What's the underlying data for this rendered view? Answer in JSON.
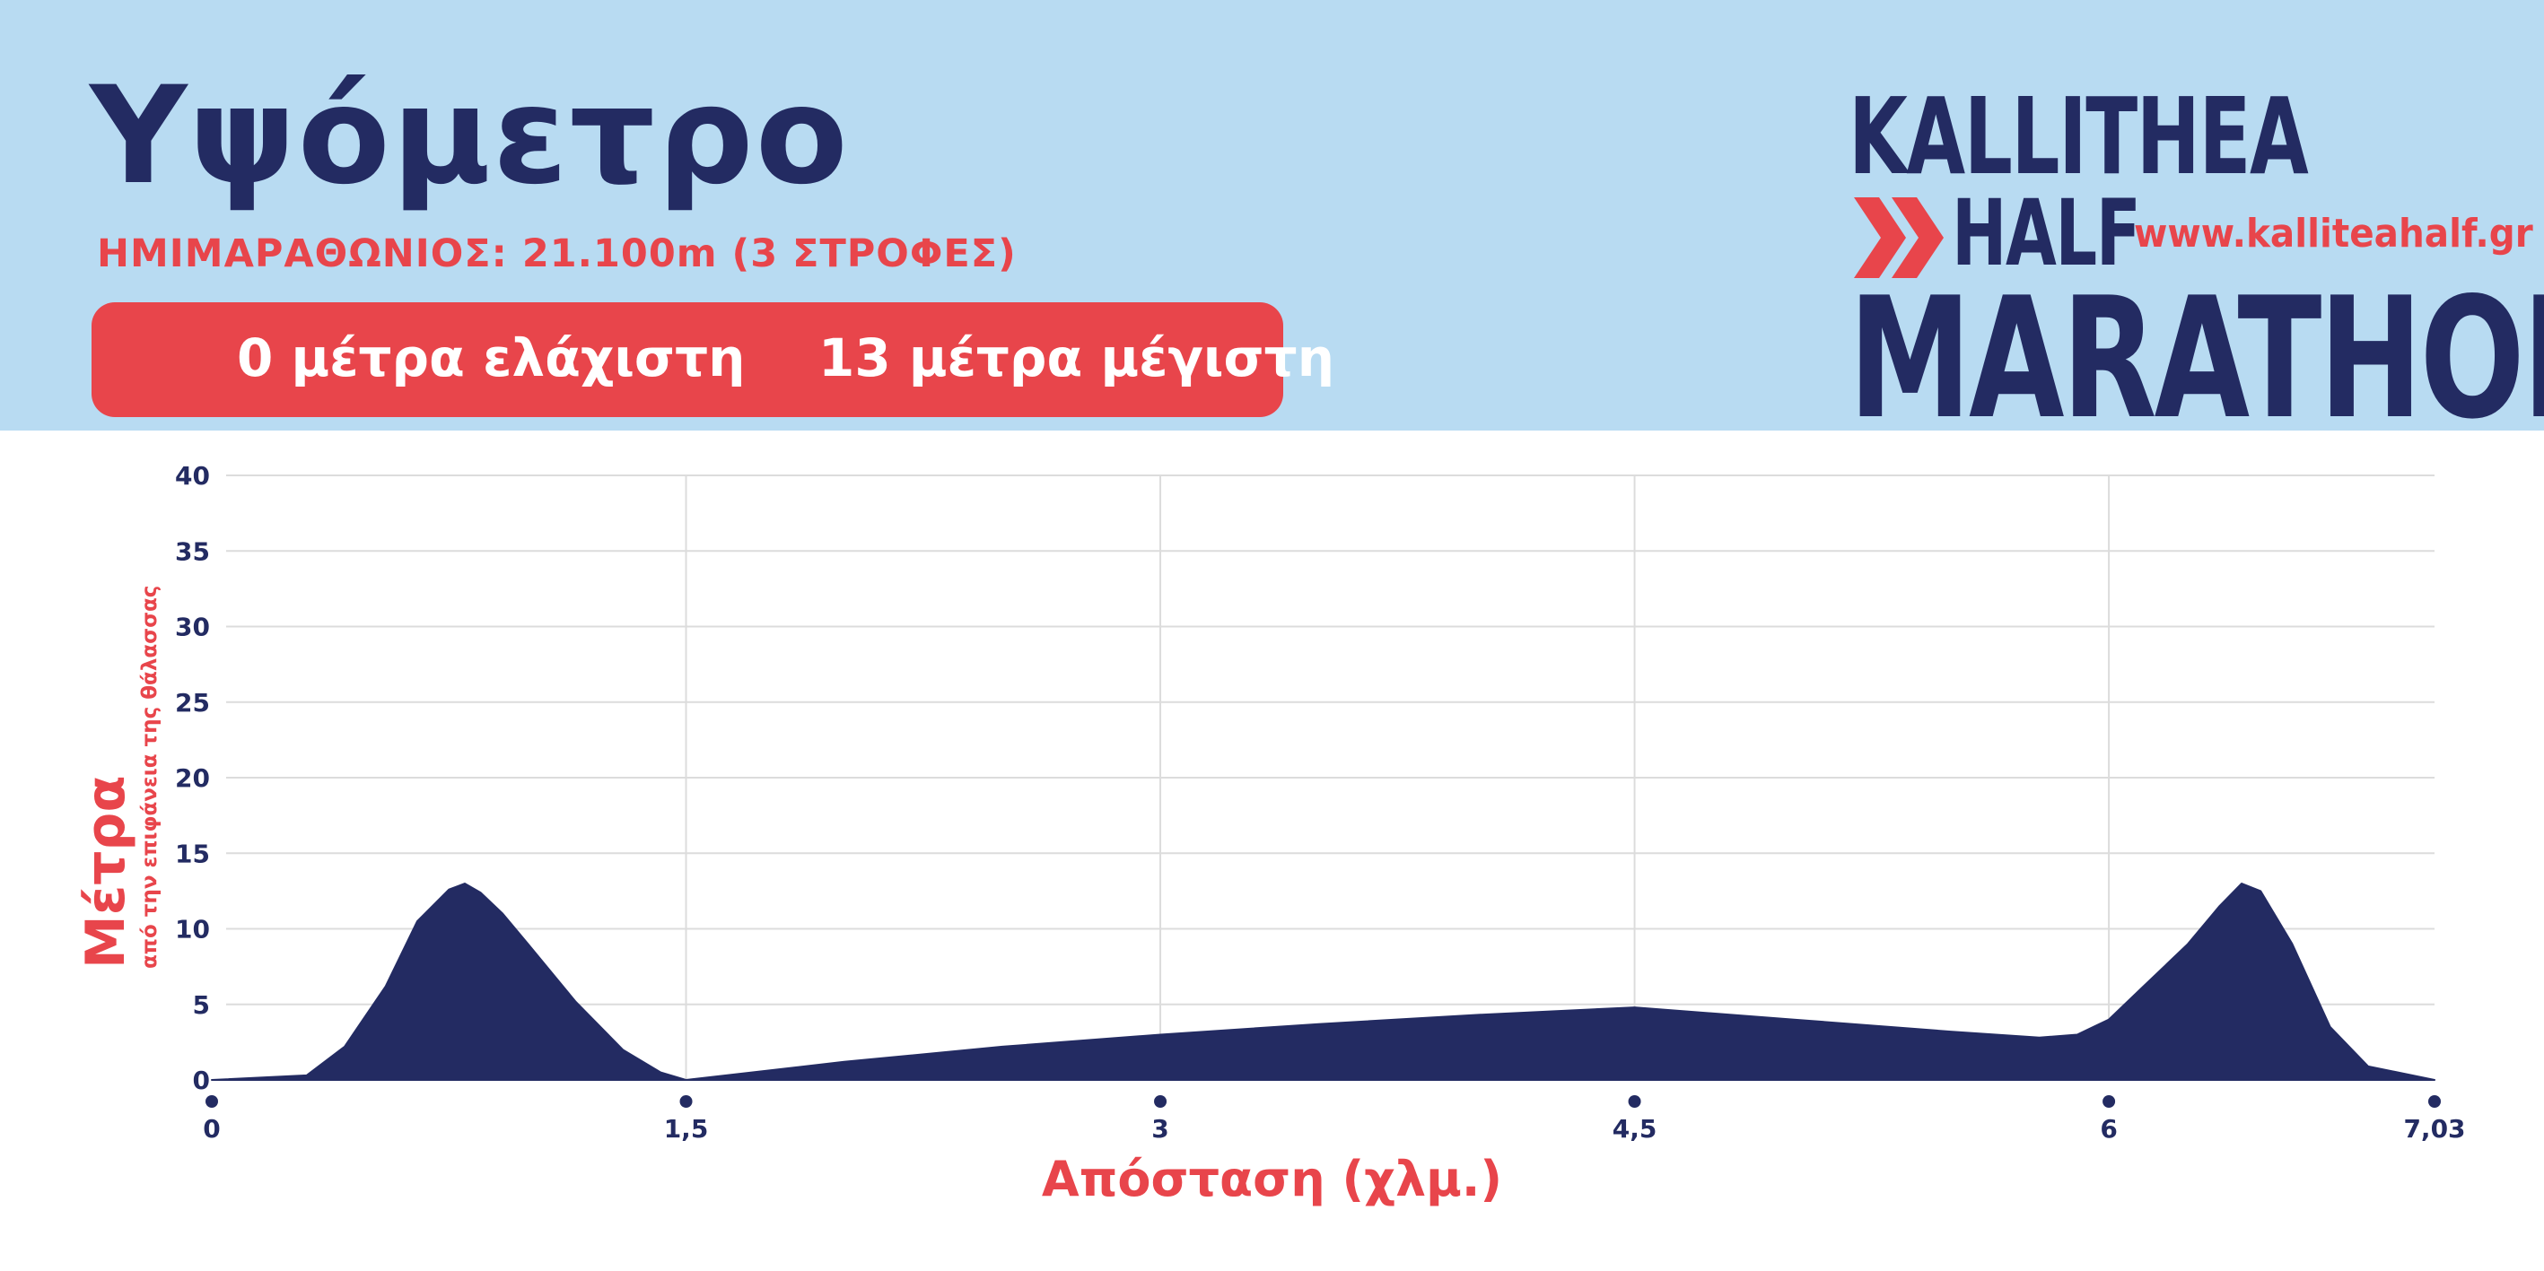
{
  "header": {
    "title": "Υψόμετρο",
    "subtitle": "ΗΜΙΜΑΡΑΘΩΝΙΟΣ: 21.100m (3 ΣΤΡΟΦΕΣ)",
    "min_label": "0 μέτρα ελάχιστη",
    "max_label": "13 μέτρα μέγιστη"
  },
  "logo": {
    "line1": "KALLITHEA",
    "line2": "HALF",
    "line3": "MARATHON",
    "url": "www.kalliteahalf.gr",
    "icon": "double-chevron-right-icon"
  },
  "colors": {
    "header_bg": "#b8dbf2",
    "navy": "#232b62",
    "accent": "#e8454b",
    "grid": "#dcdcdc"
  },
  "chart_data": {
    "type": "area",
    "title": "",
    "xlabel": "Απόσταση (χλμ.)",
    "ylabel": "Μέτρα",
    "ylabel_sub": "από την επιφάνεια της θάλασσας",
    "xlim": [
      0,
      7.03
    ],
    "ylim": [
      0,
      40
    ],
    "x_ticks": [
      0,
      1.5,
      3,
      4.5,
      6,
      7.03
    ],
    "x_tick_labels": [
      "0",
      "1,5",
      "3",
      "4,5",
      "6",
      "7,03"
    ],
    "y_ticks": [
      0,
      5,
      10,
      15,
      20,
      25,
      30,
      35,
      40
    ],
    "y_tick_labels": [
      "0",
      "5",
      "10",
      "15",
      "20",
      "25",
      "30",
      "35",
      "40"
    ],
    "grid": true,
    "series": [
      {
        "x": [
          0,
          0.3,
          0.42,
          0.55,
          0.65,
          0.75,
          0.8,
          0.85,
          0.92,
          1.0,
          1.15,
          1.3,
          1.42,
          1.5,
          2.0,
          2.5,
          3.0,
          3.5,
          4.0,
          4.5,
          5.0,
          5.5,
          5.78,
          5.9,
          6.0,
          6.1,
          6.25,
          6.35,
          6.42,
          6.48,
          6.58,
          6.7,
          6.82,
          7.03
        ],
        "y": [
          0,
          0.3,
          2.2,
          6.2,
          10.5,
          12.6,
          13,
          12.4,
          11.0,
          9.0,
          5.2,
          2.0,
          0.5,
          0,
          1.2,
          2.2,
          3.0,
          3.7,
          4.3,
          4.8,
          4.0,
          3.2,
          2.8,
          3.0,
          4.0,
          6.0,
          9.0,
          11.5,
          13,
          12.5,
          9.0,
          3.5,
          0.9,
          0
        ]
      }
    ]
  }
}
